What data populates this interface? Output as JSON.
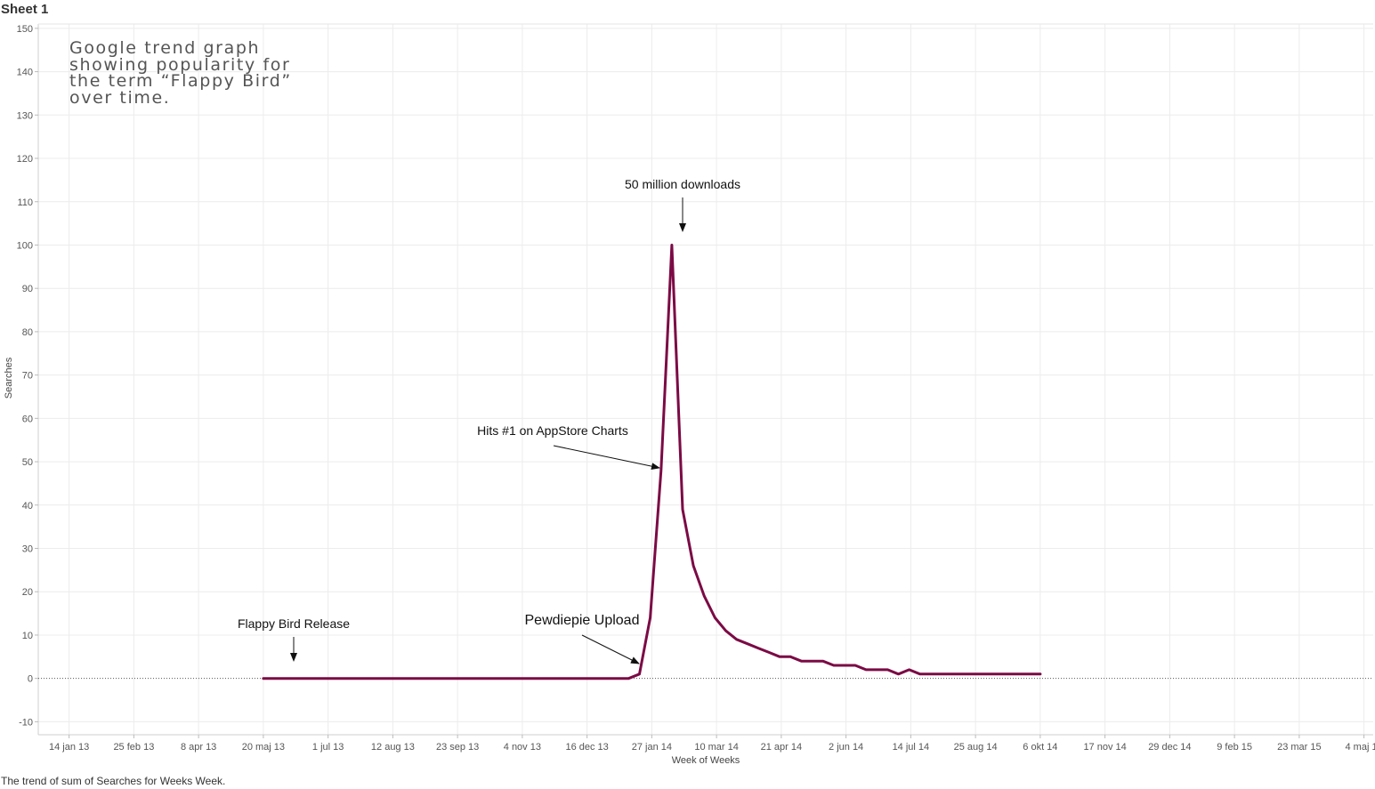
{
  "sheet": {
    "title": "Sheet 1",
    "caption": "The trend of sum of Searches for Weeks Week."
  },
  "chart_data": {
    "type": "line",
    "title_note": [
      "Google trend graph",
      "showing popularity for",
      "the term “Flappy Bird”",
      "over time."
    ],
    "xlabel": "Week of Weeks",
    "ylabel": "Searches",
    "ylim": [
      -13,
      151
    ],
    "yticks": [
      -10,
      0,
      10,
      20,
      30,
      40,
      50,
      60,
      70,
      80,
      90,
      100,
      110,
      120,
      130,
      140,
      150
    ],
    "xlim": [
      "2012-12-25",
      "2015-05-10"
    ],
    "xticks": [
      {
        "date": "2013-01-14",
        "label": "14 jan 13"
      },
      {
        "date": "2013-02-25",
        "label": "25 feb 13"
      },
      {
        "date": "2013-04-08",
        "label": "8 apr 13"
      },
      {
        "date": "2013-05-20",
        "label": "20 maj 13"
      },
      {
        "date": "2013-07-01",
        "label": "1 jul 13"
      },
      {
        "date": "2013-08-12",
        "label": "12 aug 13"
      },
      {
        "date": "2013-09-23",
        "label": "23 sep 13"
      },
      {
        "date": "2013-11-04",
        "label": "4 nov 13"
      },
      {
        "date": "2013-12-16",
        "label": "16 dec 13"
      },
      {
        "date": "2014-01-27",
        "label": "27 jan 14"
      },
      {
        "date": "2014-03-10",
        "label": "10 mar 14"
      },
      {
        "date": "2014-04-21",
        "label": "21 apr 14"
      },
      {
        "date": "2014-06-02",
        "label": "2 jun 14"
      },
      {
        "date": "2014-07-14",
        "label": "14 jul 14"
      },
      {
        "date": "2014-08-25",
        "label": "25 aug 14"
      },
      {
        "date": "2014-10-06",
        "label": "6 okt 14"
      },
      {
        "date": "2014-11-17",
        "label": "17 nov 14"
      },
      {
        "date": "2014-12-29",
        "label": "29 dec 14"
      },
      {
        "date": "2015-02-09",
        "label": "9 feb 15"
      },
      {
        "date": "2015-03-23",
        "label": "23 mar 15"
      },
      {
        "date": "2015-05-04",
        "label": "4 maj 15"
      }
    ],
    "grid": true,
    "colors": {
      "line": "#7b0a45",
      "grid": "#ececec",
      "zero_line": "#555555"
    },
    "series": [
      {
        "points": [
          {
            "x": "2013-05-20",
            "y": 0
          },
          {
            "x": "2013-06-16",
            "y": 0
          },
          {
            "x": "2013-07-21",
            "y": 0
          },
          {
            "x": "2013-08-25",
            "y": 0
          },
          {
            "x": "2013-09-29",
            "y": 0
          },
          {
            "x": "2013-11-03",
            "y": 0
          },
          {
            "x": "2013-12-08",
            "y": 0
          },
          {
            "x": "2014-01-05",
            "y": 0
          },
          {
            "x": "2014-01-12",
            "y": 0
          },
          {
            "x": "2014-01-19",
            "y": 1
          },
          {
            "x": "2014-01-26",
            "y": 14
          },
          {
            "x": "2014-02-02",
            "y": 48
          },
          {
            "x": "2014-02-09",
            "y": 100
          },
          {
            "x": "2014-02-16",
            "y": 39
          },
          {
            "x": "2014-02-23",
            "y": 26
          },
          {
            "x": "2014-03-02",
            "y": 19
          },
          {
            "x": "2014-03-09",
            "y": 14
          },
          {
            "x": "2014-03-16",
            "y": 11
          },
          {
            "x": "2014-03-23",
            "y": 9
          },
          {
            "x": "2014-03-30",
            "y": 8
          },
          {
            "x": "2014-04-06",
            "y": 7
          },
          {
            "x": "2014-04-13",
            "y": 6
          },
          {
            "x": "2014-04-20",
            "y": 5
          },
          {
            "x": "2014-04-27",
            "y": 5
          },
          {
            "x": "2014-05-04",
            "y": 4
          },
          {
            "x": "2014-05-11",
            "y": 4
          },
          {
            "x": "2014-05-18",
            "y": 4
          },
          {
            "x": "2014-05-25",
            "y": 3
          },
          {
            "x": "2014-06-01",
            "y": 3
          },
          {
            "x": "2014-06-08",
            "y": 3
          },
          {
            "x": "2014-06-15",
            "y": 2
          },
          {
            "x": "2014-06-22",
            "y": 2
          },
          {
            "x": "2014-06-29",
            "y": 2
          },
          {
            "x": "2014-07-06",
            "y": 1
          },
          {
            "x": "2014-07-13",
            "y": 2
          },
          {
            "x": "2014-07-20",
            "y": 1
          },
          {
            "x": "2014-07-27",
            "y": 1
          },
          {
            "x": "2014-08-03",
            "y": 1
          },
          {
            "x": "2014-08-17",
            "y": 1
          },
          {
            "x": "2014-08-31",
            "y": 1
          },
          {
            "x": "2014-09-14",
            "y": 1
          },
          {
            "x": "2014-09-28",
            "y": 1
          },
          {
            "x": "2014-10-06",
            "y": 1
          }
        ]
      }
    ],
    "annotations": [
      {
        "text": "50 million downloads",
        "x": "2014-02-09",
        "y": 100,
        "style": "normal"
      },
      {
        "text": "Hits #1 on  AppStore Charts",
        "x": "2014-02-02",
        "y": 48,
        "style": "normal"
      },
      {
        "text": "Flappy Bird Release",
        "x": "2013-05-20",
        "y": 0,
        "style": "normal"
      },
      {
        "text": "Pewdiepie Upload",
        "x": "2014-01-12",
        "y": 0,
        "style": "large"
      }
    ]
  }
}
